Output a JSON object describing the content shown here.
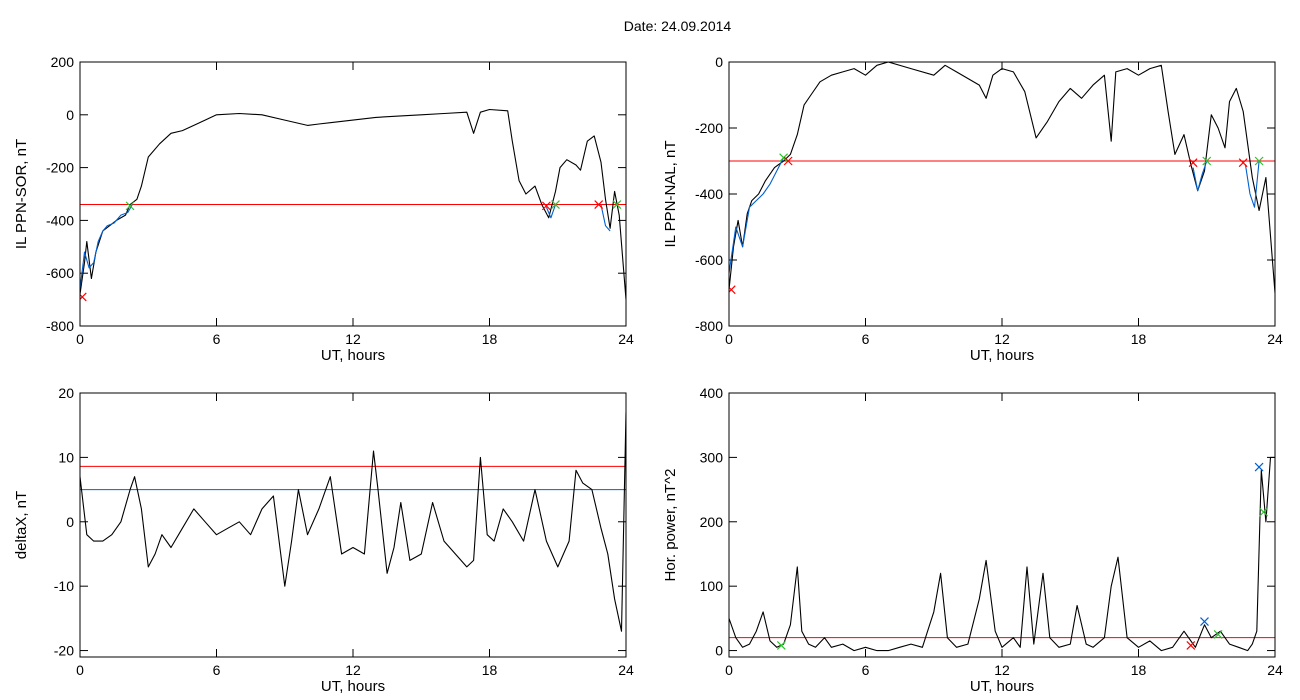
{
  "page": {
    "title": "Date:  24.09.2014"
  },
  "colors": {
    "trace": "#000000",
    "threshold": "#ff0000",
    "secondary": "#0060d0",
    "crossing_red": "#ff0000",
    "crossing_green": "#30c030",
    "crossing_blue": "#0060d0"
  },
  "chart_data": [
    {
      "id": "il-ppn-sor",
      "type": "line",
      "title": "",
      "xlabel": "UT, hours",
      "ylabel": "IL PPN-SOR, nT",
      "xlim": [
        0,
        24
      ],
      "ylim": [
        -800,
        200
      ],
      "xticks": [
        0,
        6,
        12,
        18,
        24
      ],
      "yticks": [
        -800,
        -600,
        -400,
        -200,
        0,
        200
      ],
      "threshold": -340,
      "series": [
        {
          "x": [
            0,
            0.2,
            0.3,
            0.5,
            0.7,
            1.0,
            1.3,
            1.6,
            2.0,
            2.2,
            2.5,
            2.7,
            3.0,
            3.5,
            4.0,
            4.5,
            5.0,
            5.5,
            6.0,
            7,
            8,
            9,
            10,
            10.5,
            11,
            12,
            13,
            14,
            15,
            16,
            17,
            17.3,
            17.6,
            18,
            18.8,
            19,
            19.3,
            19.6,
            20,
            20.3,
            20.6,
            20.9,
            21.1,
            21.4,
            21.8,
            22,
            22.3,
            22.6,
            22.9,
            23.1,
            23.3,
            23.5,
            23.7,
            24
          ],
          "y": [
            -680,
            -560,
            -480,
            -620,
            -520,
            -440,
            -420,
            -400,
            -380,
            -340,
            -320,
            -270,
            -160,
            -110,
            -70,
            -60,
            -40,
            -20,
            0,
            5,
            0,
            -20,
            -40,
            -35,
            -30,
            -20,
            -10,
            -5,
            0,
            5,
            10,
            -70,
            10,
            20,
            15,
            -100,
            -250,
            -300,
            -270,
            -340,
            -390,
            -290,
            -200,
            -170,
            -190,
            -210,
            -100,
            -80,
            -180,
            -320,
            -430,
            -290,
            -380,
            -700
          ]
        },
        {
          "x": [
            0,
            0.2,
            0.4,
            0.6,
            0.8,
            1.0,
            1.2,
            1.5,
            1.8,
            2.1,
            2.3
          ],
          "y": [
            -660,
            -520,
            -580,
            -560,
            -480,
            -440,
            -420,
            -410,
            -380,
            -370,
            -340
          ]
        },
        {
          "x": [
            20.5,
            20.7,
            20.9
          ],
          "y": [
            -350,
            -390,
            -340
          ]
        },
        {
          "x": [
            22.9,
            23.1,
            23.3
          ],
          "y": [
            -340,
            -420,
            -440
          ]
        }
      ],
      "markers": [
        {
          "x": 0.1,
          "y": -690,
          "color": "#ff0000"
        },
        {
          "x": 2.2,
          "y": -345,
          "color": "#30c030"
        },
        {
          "x": 20.5,
          "y": -345,
          "color": "#ff0000"
        },
        {
          "x": 20.9,
          "y": -340,
          "color": "#30c030"
        },
        {
          "x": 22.8,
          "y": -340,
          "color": "#ff0000"
        },
        {
          "x": 23.6,
          "y": -340,
          "color": "#30c030"
        }
      ]
    },
    {
      "id": "il-ppn-nal",
      "type": "line",
      "title": "",
      "xlabel": "UT, hours",
      "ylabel": "IL PPN-NAL, nT",
      "xlim": [
        0,
        24
      ],
      "ylim": [
        -800,
        0
      ],
      "xticks": [
        0,
        6,
        12,
        18,
        24
      ],
      "yticks": [
        -800,
        -600,
        -400,
        -200,
        0
      ],
      "threshold": -300,
      "series": [
        {
          "x": [
            0,
            0.2,
            0.4,
            0.6,
            0.8,
            1.0,
            1.3,
            1.6,
            2.0,
            2.4,
            2.7,
            3.0,
            3.3,
            3.6,
            4.0,
            4.5,
            5,
            5.5,
            6,
            6.5,
            7,
            8,
            9,
            9.5,
            10,
            11,
            11.3,
            11.6,
            12,
            12.5,
            13,
            13.5,
            14,
            14.5,
            15,
            15.5,
            16,
            16.5,
            16.8,
            17,
            17.5,
            18,
            18.5,
            19,
            19.3,
            19.6,
            20,
            20.3,
            20.6,
            20.9,
            21.2,
            21.5,
            21.8,
            22,
            22.3,
            22.6,
            23,
            23.3,
            23.6,
            24
          ],
          "y": [
            -690,
            -560,
            -480,
            -560,
            -460,
            -420,
            -400,
            -360,
            -320,
            -300,
            -280,
            -220,
            -130,
            -100,
            -60,
            -40,
            -30,
            -20,
            -40,
            -10,
            0,
            -20,
            -40,
            -10,
            -30,
            -70,
            -110,
            -40,
            -20,
            -30,
            -90,
            -230,
            -180,
            -120,
            -80,
            -110,
            -70,
            -40,
            -240,
            -30,
            -20,
            -40,
            -20,
            -10,
            -150,
            -280,
            -220,
            -310,
            -390,
            -330,
            -160,
            -200,
            -260,
            -120,
            -80,
            -150,
            -350,
            -450,
            -350,
            -700
          ]
        },
        {
          "x": [
            0,
            0.3,
            0.6,
            0.9,
            1.2,
            1.5,
            1.8,
            2.1,
            2.4
          ],
          "y": [
            -640,
            -500,
            -560,
            -440,
            -420,
            -400,
            -370,
            -330,
            -290
          ]
        },
        {
          "x": [
            20.4,
            20.6,
            20.8,
            21.0
          ],
          "y": [
            -320,
            -390,
            -340,
            -300
          ]
        },
        {
          "x": [
            22.7,
            22.9,
            23.1,
            23.3
          ],
          "y": [
            -310,
            -400,
            -440,
            -300
          ]
        }
      ],
      "markers": [
        {
          "x": 0.1,
          "y": -690,
          "color": "#ff0000"
        },
        {
          "x": 2.4,
          "y": -290,
          "color": "#30c030"
        },
        {
          "x": 2.6,
          "y": -300,
          "color": "#ff0000"
        },
        {
          "x": 20.4,
          "y": -305,
          "color": "#ff0000"
        },
        {
          "x": 21.0,
          "y": -300,
          "color": "#30c030"
        },
        {
          "x": 22.6,
          "y": -305,
          "color": "#ff0000"
        },
        {
          "x": 23.3,
          "y": -300,
          "color": "#30c030"
        }
      ]
    },
    {
      "id": "deltax",
      "type": "line",
      "title": "",
      "xlabel": "UT, hours",
      "ylabel": "deltaX, nT",
      "xlim": [
        0,
        24
      ],
      "ylim": [
        -21,
        20
      ],
      "xticks": [
        0,
        6,
        12,
        18,
        24
      ],
      "yticks": [
        -20,
        -10,
        0,
        10,
        20
      ],
      "threshold": 8.6,
      "threshold2": 5.0,
      "series": [
        {
          "x": [
            0,
            0.3,
            0.6,
            1.0,
            1.4,
            1.8,
            2.2,
            2.4,
            2.7,
            3.0,
            3.3,
            3.6,
            4.0,
            4.5,
            5,
            5.5,
            6,
            6.5,
            7,
            7.5,
            8,
            8.5,
            9,
            9.3,
            9.6,
            10,
            10.5,
            11,
            11.5,
            12,
            12.5,
            12.9,
            13.1,
            13.5,
            13.8,
            14.1,
            14.5,
            15,
            15.5,
            16,
            16.5,
            17,
            17.3,
            17.6,
            17.9,
            18.2,
            18.6,
            19,
            19.5,
            20,
            20.5,
            21,
            21.5,
            21.8,
            22.1,
            22.5,
            22.9,
            23.2,
            23.5,
            23.8,
            24
          ],
          "y": [
            7,
            -2,
            -3,
            -3,
            -2,
            0,
            5,
            7,
            2,
            -7,
            -5,
            -2,
            -4,
            -1,
            2,
            0,
            -2,
            -1,
            0,
            -2,
            2,
            4,
            -10,
            -3,
            5,
            -2,
            2,
            7,
            -5,
            -4,
            -5,
            11,
            5,
            -8,
            -4,
            3,
            -6,
            -5,
            3,
            -3,
            -5,
            -7,
            -6,
            10,
            -2,
            -3,
            2,
            0,
            -3,
            5,
            -3,
            -7,
            -3,
            8,
            6,
            5,
            -1,
            -5,
            -12,
            -17,
            17
          ]
        }
      ],
      "markers": []
    },
    {
      "id": "hor-power",
      "type": "line",
      "title": "",
      "xlabel": "UT, hours",
      "ylabel": "Hor. power, nT^2",
      "xlim": [
        0,
        24
      ],
      "ylim": [
        -10,
        400
      ],
      "xticks": [
        0,
        6,
        12,
        18,
        24
      ],
      "yticks": [
        0,
        100,
        200,
        300,
        400
      ],
      "threshold": 20,
      "series": [
        {
          "x": [
            0,
            0.3,
            0.6,
            0.9,
            1.2,
            1.5,
            1.8,
            2.1,
            2.4,
            2.7,
            3.0,
            3.2,
            3.5,
            3.8,
            4.2,
            4.5,
            5,
            5.5,
            6,
            6.5,
            7,
            7.5,
            8,
            8.5,
            9,
            9.3,
            9.6,
            10,
            10.5,
            11,
            11.3,
            11.7,
            12,
            12.5,
            12.8,
            13.1,
            13.4,
            13.8,
            14.1,
            14.5,
            15,
            15.3,
            15.7,
            16,
            16.5,
            16.8,
            17.1,
            17.5,
            18,
            18.5,
            19,
            19.5,
            20,
            20.5,
            20.9,
            21.2,
            21.6,
            22,
            22.4,
            22.8,
            23,
            23.2,
            23.4,
            23.6,
            23.8,
            24
          ],
          "y": [
            50,
            20,
            5,
            10,
            30,
            60,
            15,
            5,
            10,
            40,
            130,
            30,
            10,
            5,
            20,
            5,
            10,
            0,
            5,
            0,
            0,
            5,
            10,
            5,
            60,
            120,
            20,
            5,
            10,
            80,
            140,
            30,
            5,
            20,
            5,
            130,
            10,
            120,
            20,
            5,
            10,
            70,
            10,
            5,
            20,
            100,
            145,
            20,
            5,
            15,
            0,
            5,
            30,
            5,
            40,
            20,
            30,
            10,
            5,
            0,
            10,
            30,
            280,
            200,
            300,
            300
          ]
        }
      ],
      "markers": [
        {
          "x": 2.3,
          "y": 8,
          "color": "#30c030"
        },
        {
          "x": 20.3,
          "y": 8,
          "color": "#ff0000"
        },
        {
          "x": 20.9,
          "y": 45,
          "color": "#0060d0"
        },
        {
          "x": 21.5,
          "y": 25,
          "color": "#30c030"
        },
        {
          "x": 23.3,
          "y": 285,
          "color": "#0060d0"
        },
        {
          "x": 23.5,
          "y": 215,
          "color": "#30c030"
        }
      ]
    }
  ]
}
